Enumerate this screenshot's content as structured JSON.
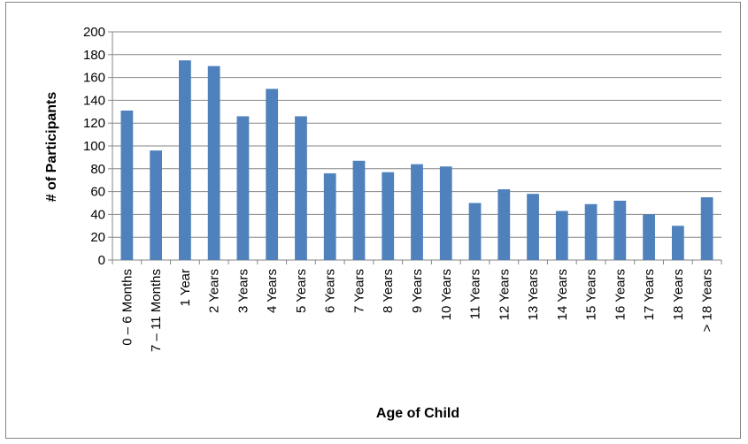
{
  "chart_data": {
    "type": "bar",
    "title": "",
    "xlabel": "Age of Child",
    "ylabel": "# of Participants",
    "ylim": [
      0,
      200
    ],
    "y_ticks": [
      0,
      20,
      40,
      60,
      80,
      100,
      120,
      140,
      160,
      180,
      200
    ],
    "grid": true,
    "legend": "none",
    "bar_color": "#4f81bd",
    "categories": [
      "0 – 6 Months",
      "7 – 11 Months",
      "1 Year",
      "2 Years",
      "3 Years",
      "4 Years",
      "5 Years",
      "6 Years",
      "7 Years",
      "8 Years",
      "9 Years",
      "10 Years",
      "11 Years",
      "12 Years",
      "13 Years",
      "14 Years",
      "15 Years",
      "16 Years",
      "17 Years",
      "18 Years",
      "> 18 Years"
    ],
    "values": [
      131,
      96,
      175,
      170,
      126,
      150,
      126,
      76,
      87,
      77,
      84,
      82,
      50,
      62,
      58,
      43,
      49,
      52,
      40,
      30,
      55
    ]
  }
}
